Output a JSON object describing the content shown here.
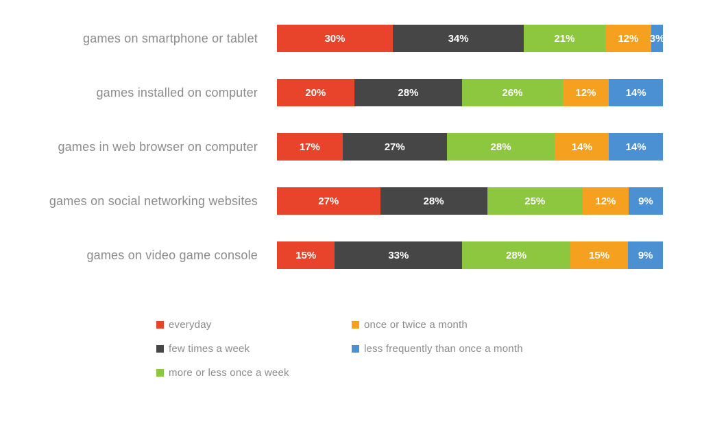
{
  "chart_data": {
    "type": "bar",
    "variant": "horizontal-stacked",
    "unit": "%",
    "title": "",
    "grid": false,
    "xlim": [
      0,
      100
    ],
    "value_labels": "inside segments, white bold, format {value}%",
    "legend_position": "bottom, two columns",
    "categories": [
      "games on smartphone or tablet",
      "games installed on computer",
      "games in web browser on computer",
      "games on social networking websites",
      "games on video game console"
    ],
    "series": [
      {
        "name": "everyday",
        "color": "#e8442b",
        "values": [
          30,
          20,
          17,
          27,
          15
        ]
      },
      {
        "name": "few times a week",
        "color": "#464646",
        "values": [
          34,
          28,
          27,
          28,
          33
        ]
      },
      {
        "name": "more or less once a week",
        "color": "#8dc63f",
        "values": [
          21,
          26,
          28,
          25,
          28
        ]
      },
      {
        "name": "once or twice a month",
        "color": "#f5a01e",
        "values": [
          12,
          12,
          14,
          12,
          15
        ]
      },
      {
        "name": "less frequently than once a month",
        "color": "#4a90d2",
        "values": [
          3,
          14,
          14,
          9,
          9
        ]
      }
    ],
    "legend_columns": [
      [
        "everyday",
        "few times a week",
        "more or less once a week"
      ],
      [
        "once or twice a month",
        "less frequently than once a month"
      ]
    ]
  },
  "style_colors": {
    "category_label": "#8b8b8b",
    "legend_label": "#8b8b8b",
    "bar_value_text": "#ffffff",
    "background": "#ffffff"
  }
}
